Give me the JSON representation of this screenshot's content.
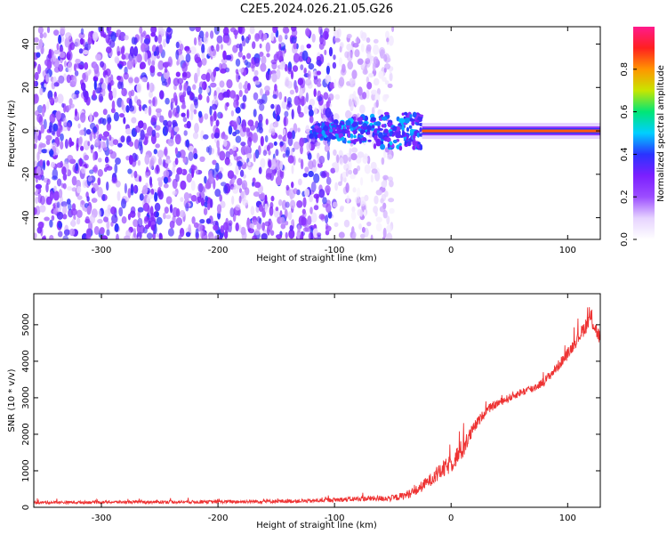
{
  "figure_title": "C2E5.2024.026.21.05.G26",
  "colors": {
    "snr_line": "#ee3333",
    "spectrogram_noise": "#7b1fff",
    "axis": "#000000"
  },
  "chart_data": [
    {
      "type": "heatmap",
      "title": "C2E5.2024.026.21.05.G26",
      "xlabel": "Height of straight line (km)",
      "ylabel": "Frequency (Hz)",
      "xlim": [
        -358,
        128
      ],
      "ylim": [
        -50,
        48
      ],
      "xticks": [
        -300,
        -200,
        -100,
        0,
        100
      ],
      "yticks": [
        -40,
        -20,
        0,
        20,
        40
      ],
      "colorbar": {
        "label": "Normalized spectral amplitude",
        "range": [
          0.0,
          1.0
        ],
        "ticks": [
          0.0,
          0.2,
          0.4,
          0.6,
          0.8
        ],
        "tick_labels": [
          "0.0",
          "0.2",
          "0.4",
          "0.6",
          "0.8"
        ],
        "colormap": [
          "#ffffff",
          "#e6d3ff",
          "#9c4dff",
          "#7b1fff",
          "#2a33ff",
          "#00cfff",
          "#00e676",
          "#c8e600",
          "#ff9500",
          "#ff2020",
          "#ff1a8c"
        ]
      },
      "regions": [
        {
          "name": "dense noise",
          "x_range": [
            -358,
            -100
          ],
          "freq_range": [
            -50,
            48
          ],
          "amplitude": 0.15
        },
        {
          "name": "fading noise",
          "x_range": [
            -100,
            -50
          ],
          "freq_range": [
            -50,
            48
          ],
          "amplitude": 0.08
        },
        {
          "name": "signal onset",
          "x_range": [
            -120,
            -25
          ],
          "freq_center": 0,
          "freq_halfwidth": 8,
          "amplitude": 0.35
        },
        {
          "name": "carrier line",
          "x_range": [
            -25,
            128
          ],
          "freq_center": 0,
          "amplitude": 0.85
        }
      ]
    },
    {
      "type": "line",
      "xlabel": "Height of straight line (km)",
      "ylabel": "SNR (10 * v/v)",
      "xlim": [
        -358,
        128
      ],
      "ylim": [
        0,
        5850
      ],
      "xticks": [
        -300,
        -200,
        -100,
        0,
        100
      ],
      "yticks": [
        0,
        1000,
        2000,
        3000,
        4000,
        5000
      ],
      "series": [
        {
          "name": "SNR",
          "x": [
            -358,
            -300,
            -200,
            -120,
            -80,
            -50,
            -40,
            -30,
            -20,
            -10,
            0,
            10,
            20,
            30,
            40,
            50,
            60,
            70,
            80,
            90,
            100,
            110,
            120,
            128
          ],
          "values": [
            130,
            140,
            150,
            175,
            230,
            250,
            320,
            450,
            700,
            950,
            1200,
            1600,
            2200,
            2650,
            2850,
            3000,
            3150,
            3250,
            3450,
            3800,
            4200,
            4700,
            5200,
            4600
          ],
          "noise": [
            40,
            40,
            45,
            55,
            70,
            90,
            110,
            140,
            160,
            220,
            260,
            300,
            160,
            120,
            110,
            110,
            110,
            120,
            120,
            140,
            160,
            180,
            260,
            220
          ]
        }
      ]
    }
  ]
}
